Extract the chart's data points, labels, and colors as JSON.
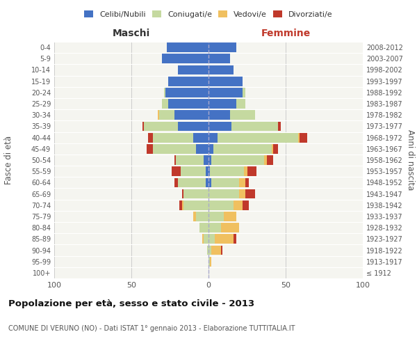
{
  "age_groups": [
    "100+",
    "95-99",
    "90-94",
    "85-89",
    "80-84",
    "75-79",
    "70-74",
    "65-69",
    "60-64",
    "55-59",
    "50-54",
    "45-49",
    "40-44",
    "35-39",
    "30-34",
    "25-29",
    "20-24",
    "15-19",
    "10-14",
    "5-9",
    "0-4"
  ],
  "birth_years": [
    "≤ 1912",
    "1913-1917",
    "1918-1922",
    "1923-1927",
    "1928-1932",
    "1933-1937",
    "1938-1942",
    "1943-1947",
    "1948-1952",
    "1953-1957",
    "1958-1962",
    "1963-1967",
    "1968-1972",
    "1973-1977",
    "1978-1982",
    "1983-1987",
    "1988-1992",
    "1993-1997",
    "1998-2002",
    "2003-2007",
    "2008-2012"
  ],
  "males": {
    "celibi": [
      0,
      0,
      0,
      0,
      0,
      0,
      0,
      0,
      2,
      2,
      3,
      8,
      10,
      20,
      22,
      26,
      28,
      26,
      20,
      30,
      27
    ],
    "coniugati": [
      0,
      0,
      1,
      3,
      6,
      8,
      16,
      16,
      18,
      16,
      18,
      28,
      26,
      22,
      10,
      4,
      1,
      0,
      0,
      0,
      0
    ],
    "vedovi": [
      0,
      0,
      0,
      1,
      0,
      2,
      1,
      0,
      0,
      0,
      0,
      0,
      0,
      0,
      1,
      0,
      0,
      0,
      0,
      0,
      0
    ],
    "divorziati": [
      0,
      0,
      0,
      0,
      0,
      0,
      2,
      1,
      2,
      6,
      1,
      4,
      3,
      1,
      0,
      0,
      0,
      0,
      0,
      0,
      0
    ]
  },
  "females": {
    "nubili": [
      0,
      0,
      0,
      0,
      0,
      0,
      0,
      0,
      2,
      1,
      2,
      3,
      6,
      15,
      14,
      18,
      22,
      22,
      16,
      14,
      18
    ],
    "coniugate": [
      0,
      1,
      2,
      4,
      8,
      10,
      16,
      20,
      18,
      22,
      34,
      38,
      52,
      30,
      16,
      6,
      2,
      0,
      0,
      0,
      0
    ],
    "vedove": [
      0,
      1,
      6,
      12,
      12,
      8,
      6,
      4,
      4,
      2,
      2,
      1,
      1,
      0,
      0,
      0,
      0,
      0,
      0,
      0,
      0
    ],
    "divorziate": [
      0,
      0,
      1,
      2,
      0,
      0,
      4,
      6,
      2,
      6,
      4,
      3,
      5,
      2,
      0,
      0,
      0,
      0,
      0,
      0,
      0
    ]
  },
  "color_celibi": "#4472c4",
  "color_coniugati": "#c5d9a0",
  "color_vedovi": "#f0c060",
  "color_divorziati": "#c0392b",
  "background_color": "#ffffff",
  "plot_bg_color": "#f5f5f0",
  "grid_color": "#cccccc",
  "xlim": 100,
  "title": "Popolazione per età, sesso e stato civile - 2013",
  "subtitle": "COMUNE DI VERUNO (NO) - Dati ISTAT 1° gennaio 2013 - Elaborazione TUTTITALIA.IT",
  "ylabel_left": "Fasce di età",
  "ylabel_right": "Anni di nascita",
  "xlabel_left": "Maschi",
  "xlabel_right": "Femmine",
  "legend_labels": [
    "Celibi/Nubili",
    "Coniugati/e",
    "Vedovi/e",
    "Divorziati/e"
  ]
}
